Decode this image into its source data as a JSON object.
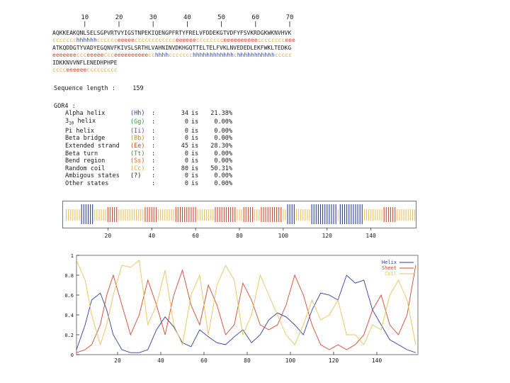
{
  "ruler": {
    "ticks": [
      "10",
      "20",
      "30",
      "40",
      "50",
      "60",
      "70"
    ]
  },
  "sequence_lines": [
    {
      "seq": "AQKKEAKQNLSELSGPVRTVYIGSTNPEKIQENGPFRTYFRELVFDDEKGTVDFYFSVKRDGKWKNVHVK",
      "pred": "ccccccchhhhhhcccccceeeeecccccccccccceeeeeecccccccceeeeeeeeeecccccccceee"
    },
    {
      "seq": "ATKQDDGTYVADYEGQNVFKIVSLSRTHLVAHNINVDKHGQTTELTELFVKLNVEDEDLEKFWKLTEDKG",
      "pred": "eeeeeeeccceeeeeccceeeeeeeeeecchhhhccccccchhhhhhhhhhhhchhhhhhhhhhhccccc"
    },
    {
      "seq": "IDKKNVVNFLENEDHPHPE",
      "pred": "cccceeeeeeccccccccc"
    }
  ],
  "sequence_length": {
    "label": "Sequence length :",
    "value": "159"
  },
  "gor4": {
    "title": "GOR4 :",
    "rows": [
      {
        "name": "Alpha helix",
        "code": "(Hh)",
        "count": "34",
        "is": "is",
        "pct": "21.38%",
        "color": "#2b3f9e"
      },
      {
        "name": "3 helix",
        "sub": "10",
        "code": "(Gg)",
        "count": "0",
        "is": "is",
        "pct": "0.00%",
        "color": "#2b9e3f"
      },
      {
        "name": "Pi helix",
        "code": "(Ii)",
        "count": "0",
        "is": "is",
        "pct": "0.00%",
        "color": "#7a3f9e"
      },
      {
        "name": "Beta bridge",
        "code": "(Bb)",
        "count": "0",
        "is": "is",
        "pct": "0.00%",
        "color": "#b58b2a"
      },
      {
        "name": "Extended strand",
        "code": "(Ee)",
        "count": "45",
        "is": "is",
        "pct": "28.30%",
        "color": "#cc4a2e"
      },
      {
        "name": "Beta turn",
        "code": "(Tt)",
        "count": "0",
        "is": "is",
        "pct": "0.00%",
        "color": "#4a8a3e"
      },
      {
        "name": "Bend region",
        "code": "(Ss)",
        "count": "0",
        "is": "is",
        "pct": "0.00%",
        "color": "#c76b2e"
      },
      {
        "name": "Random coil",
        "code": "(Cc)",
        "count": "80",
        "is": "is",
        "pct": "50.31%",
        "color": "#e3a43c"
      },
      {
        "name": "Ambigous states",
        "code": "(?)",
        "count": "0",
        "is": "is",
        "pct": "0.00%",
        "color": "#1a1a1a"
      },
      {
        "name": "Other states",
        "code": "",
        "count": "0",
        "is": "is",
        "pct": "0.00%",
        "color": "#1a1a1a"
      }
    ]
  },
  "strip": {
    "ticks": [
      "20",
      "40",
      "60",
      "80",
      "100",
      "120",
      "140"
    ]
  },
  "chart_data": {
    "type": "line",
    "x_range": [
      1,
      159
    ],
    "ylim": [
      0,
      1
    ],
    "y_ticks": [
      "0",
      "0.2",
      "0.4",
      "0.6",
      "0.8",
      "1"
    ],
    "x_ticks": [
      "20",
      "40",
      "60",
      "80",
      "100",
      "120",
      "140"
    ],
    "legend_position": "top-right",
    "series": [
      {
        "name": "Helix",
        "color": "#2b3f9e",
        "x": [
          1,
          5,
          8,
          12,
          15,
          18,
          22,
          26,
          30,
          34,
          38,
          42,
          46,
          50,
          54,
          58,
          62,
          66,
          70,
          74,
          78,
          82,
          86,
          90,
          94,
          98,
          102,
          106,
          110,
          114,
          118,
          122,
          126,
          130,
          134,
          138,
          142,
          146,
          150,
          154,
          158
        ],
        "y": [
          0.05,
          0.3,
          0.55,
          0.62,
          0.45,
          0.2,
          0.05,
          0.02,
          0.02,
          0.05,
          0.25,
          0.38,
          0.28,
          0.12,
          0.08,
          0.25,
          0.18,
          0.12,
          0.1,
          0.18,
          0.25,
          0.12,
          0.2,
          0.35,
          0.42,
          0.38,
          0.3,
          0.2,
          0.45,
          0.62,
          0.6,
          0.55,
          0.8,
          0.72,
          0.75,
          0.45,
          0.3,
          0.15,
          0.1,
          0.05,
          0.02
        ]
      },
      {
        "name": "Sheet",
        "color": "#cc4a2e",
        "x": [
          1,
          5,
          8,
          12,
          15,
          18,
          22,
          26,
          30,
          34,
          38,
          42,
          46,
          50,
          54,
          58,
          62,
          66,
          70,
          74,
          78,
          82,
          86,
          90,
          94,
          98,
          102,
          106,
          110,
          114,
          118,
          122,
          126,
          130,
          134,
          138,
          142,
          146,
          150,
          154,
          158
        ],
        "y": [
          0.02,
          0.05,
          0.1,
          0.3,
          0.6,
          0.8,
          0.5,
          0.2,
          0.4,
          0.75,
          0.5,
          0.2,
          0.6,
          0.85,
          0.5,
          0.3,
          0.7,
          0.5,
          0.2,
          0.3,
          0.72,
          0.55,
          0.3,
          0.25,
          0.3,
          0.5,
          0.8,
          0.6,
          0.3,
          0.1,
          0.05,
          0.1,
          0.05,
          0.1,
          0.2,
          0.45,
          0.6,
          0.3,
          0.2,
          0.4,
          0.9
        ]
      },
      {
        "name": "Coil",
        "color": "#e8c15a",
        "x": [
          1,
          5,
          8,
          12,
          15,
          18,
          22,
          26,
          30,
          34,
          38,
          42,
          46,
          50,
          54,
          58,
          62,
          66,
          70,
          74,
          78,
          82,
          86,
          90,
          94,
          98,
          102,
          106,
          110,
          114,
          118,
          122,
          126,
          130,
          134,
          138,
          142,
          146,
          150,
          154,
          158
        ],
        "y": [
          0.95,
          0.75,
          0.4,
          0.1,
          0.3,
          0.6,
          0.9,
          0.88,
          0.95,
          0.3,
          0.5,
          0.85,
          0.3,
          0.1,
          0.6,
          0.8,
          0.2,
          0.7,
          0.9,
          0.75,
          0.2,
          0.4,
          0.8,
          0.6,
          0.4,
          0.2,
          0.1,
          0.3,
          0.55,
          0.35,
          0.4,
          0.55,
          0.2,
          0.2,
          0.1,
          0.3,
          0.25,
          0.6,
          0.75,
          0.55,
          0.1
        ]
      }
    ]
  }
}
